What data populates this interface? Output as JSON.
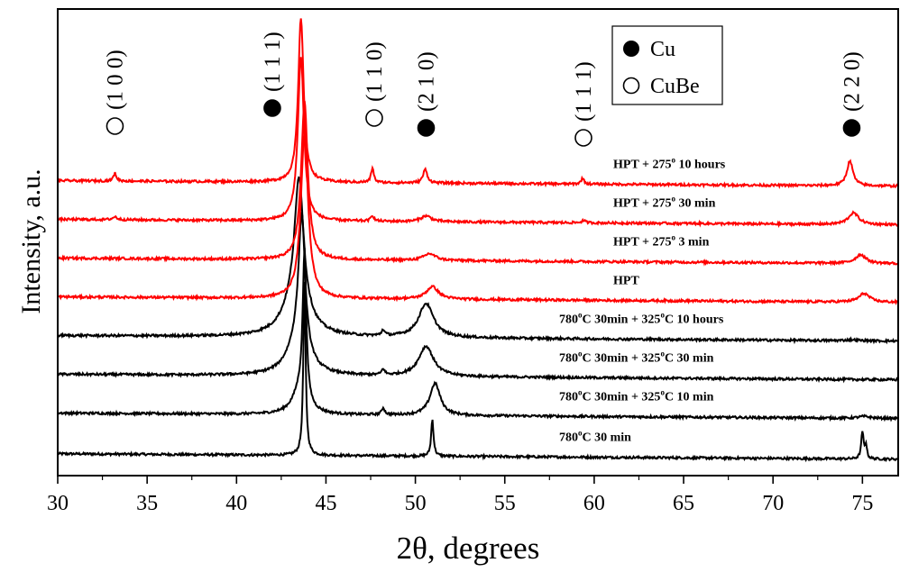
{
  "chart_data": {
    "type": "line",
    "xlabel": "2θ, degrees",
    "ylabel": "Intensity, a.u.",
    "xlim": [
      30,
      77
    ],
    "x_ticks": [
      30,
      35,
      40,
      45,
      50,
      55,
      60,
      65,
      70,
      75
    ],
    "colors": {
      "annealed": "#000000",
      "hpt": "#ff0000"
    },
    "legend": {
      "position": "top-right",
      "entries": [
        {
          "marker": "filled-circle",
          "label": "Cu"
        },
        {
          "marker": "open-circle",
          "label": "CuBe"
        }
      ]
    },
    "peak_labels": [
      {
        "hkl": "(1 0 0)",
        "phase": "CuBe",
        "two_theta": 33.2
      },
      {
        "hkl": "(1 1 1)",
        "phase": "Cu",
        "two_theta": 42.0
      },
      {
        "hkl": "(1 1 0)",
        "phase": "CuBe",
        "two_theta": 47.7
      },
      {
        "hkl": "(2 1 0)",
        "phase": "Cu",
        "two_theta": 50.6
      },
      {
        "hkl": "(1 1 1)",
        "phase": "CuBe",
        "two_theta": 59.4
      },
      {
        "hkl": "(2 2 0)",
        "phase": "Cu",
        "two_theta": 74.4
      }
    ],
    "series": [
      {
        "name": "780°C 30 min",
        "label_parts": [
          "780",
          "o",
          "C 30 min"
        ],
        "color": "annealed",
        "baseline": 0.2,
        "peaks": [
          {
            "pos": 43.8,
            "height": 8.9,
            "width": 0.08
          },
          {
            "pos": 50.95,
            "height": 1.9,
            "width": 0.08
          },
          {
            "pos": 75.0,
            "height": 1.4,
            "width": 0.08
          },
          {
            "pos": 75.2,
            "height": 0.7,
            "width": 0.06
          }
        ]
      },
      {
        "name": "780°C 30min + 325°C 10 min",
        "label_parts": [
          "780",
          "o",
          "C 30min + 325",
          "o",
          "C 10 min"
        ],
        "color": "annealed",
        "baseline": 2.3,
        "peaks": [
          {
            "pos": 43.8,
            "height": 7.6,
            "width": 0.12
          },
          {
            "pos": 43.55,
            "height": 1.2,
            "width": 0.5
          },
          {
            "pos": 48.2,
            "height": 0.35,
            "width": 0.1
          },
          {
            "pos": 51.1,
            "height": 1.65,
            "width": 0.35
          },
          {
            "pos": 75.1,
            "height": 0.1,
            "width": 0.4
          }
        ]
      },
      {
        "name": "780°C 30min + 325°C 30 min",
        "label_parts": [
          "780",
          "o",
          "C 30min + 325",
          "o",
          "C 30 min"
        ],
        "color": "annealed",
        "baseline": 4.3,
        "peaks": [
          {
            "pos": 43.65,
            "height": 7.0,
            "width": 0.22
          },
          {
            "pos": 43.4,
            "height": 1.6,
            "width": 0.7
          },
          {
            "pos": 48.2,
            "height": 0.3,
            "width": 0.1
          },
          {
            "pos": 50.6,
            "height": 1.55,
            "width": 0.5
          }
        ]
      },
      {
        "name": "780°C 30min + 325°C 10 hours",
        "label_parts": [
          "780",
          "o",
          "C 30min + 325",
          "o",
          "C 10 hours"
        ],
        "color": "annealed",
        "baseline": 6.3,
        "peaks": [
          {
            "pos": 43.5,
            "height": 6.6,
            "width": 0.3
          },
          {
            "pos": 43.3,
            "height": 1.8,
            "width": 0.8
          },
          {
            "pos": 48.2,
            "height": 0.3,
            "width": 0.1
          },
          {
            "pos": 50.6,
            "height": 1.75,
            "width": 0.5
          },
          {
            "pos": 74.4,
            "height": 0.05,
            "width": 0.4
          }
        ]
      },
      {
        "name": "HPT",
        "label_parts": [
          "HPT"
        ],
        "color": "hpt",
        "baseline": 8.3,
        "peaks": [
          {
            "pos": 43.8,
            "height": 8.5,
            "width": 0.25
          },
          {
            "pos": 50.95,
            "height": 0.65,
            "width": 0.4
          },
          {
            "pos": 75.1,
            "height": 0.45,
            "width": 0.35
          }
        ]
      },
      {
        "name": "HPT + 275° 3 min",
        "label_parts": [
          "HPT + 275",
          "o",
          " 3 min"
        ],
        "color": "hpt",
        "baseline": 10.3,
        "peaks": [
          {
            "pos": 43.8,
            "height": 8.2,
            "width": 0.22
          },
          {
            "pos": 50.8,
            "height": 0.35,
            "width": 0.4
          },
          {
            "pos": 74.9,
            "height": 0.45,
            "width": 0.35
          }
        ]
      },
      {
        "name": "HPT + 275° 30 min",
        "label_parts": [
          "HPT + 275",
          "o",
          " 30 min"
        ],
        "color": "hpt",
        "baseline": 12.3,
        "peaks": [
          {
            "pos": 43.6,
            "height": 8.5,
            "width": 0.2
          },
          {
            "pos": 33.2,
            "height": 0.15,
            "width": 0.15
          },
          {
            "pos": 47.6,
            "height": 0.3,
            "width": 0.1
          },
          {
            "pos": 50.6,
            "height": 0.3,
            "width": 0.35
          },
          {
            "pos": 59.4,
            "height": 0.12,
            "width": 0.12
          },
          {
            "pos": 74.5,
            "height": 0.6,
            "width": 0.35
          }
        ]
      },
      {
        "name": "HPT + 275° 10 hours",
        "label_parts": [
          "HPT + 275",
          "o",
          " 10 hours"
        ],
        "color": "hpt",
        "baseline": 14.3,
        "peaks": [
          {
            "pos": 43.6,
            "height": 8.5,
            "width": 0.18
          },
          {
            "pos": 33.2,
            "height": 0.4,
            "width": 0.1
          },
          {
            "pos": 47.6,
            "height": 0.75,
            "width": 0.09
          },
          {
            "pos": 50.55,
            "height": 0.7,
            "width": 0.14
          },
          {
            "pos": 59.35,
            "height": 0.3,
            "width": 0.1
          },
          {
            "pos": 74.3,
            "height": 1.3,
            "width": 0.2
          }
        ]
      }
    ]
  }
}
